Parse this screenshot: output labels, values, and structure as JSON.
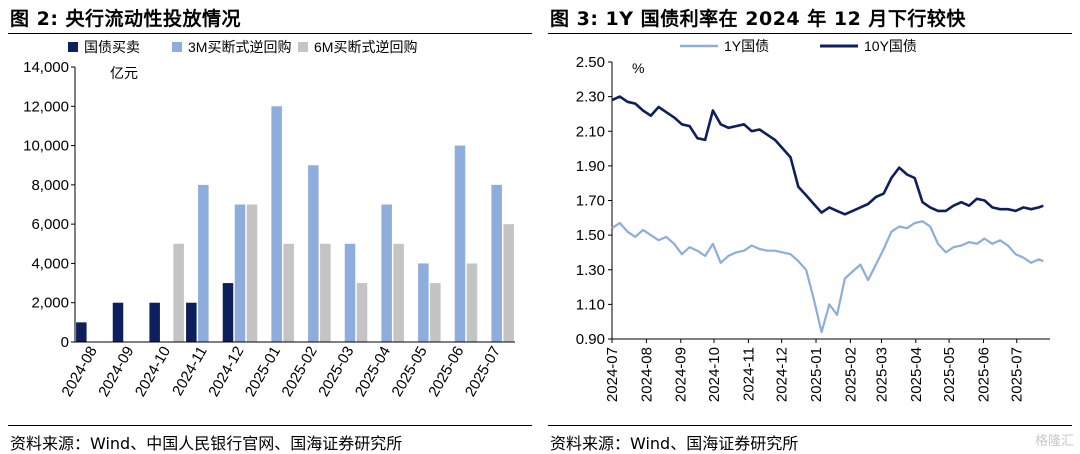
{
  "left": {
    "title": "图 2:  央行流动性投放情况",
    "source": "资料来源：Wind、中国人民银行官网、国海证券研究所",
    "chart_data": {
      "type": "bar",
      "categories": [
        "2024-08",
        "2024-09",
        "2024-10",
        "2024-11",
        "2024-12",
        "2025-01",
        "2025-02",
        "2025-03",
        "2025-04",
        "2025-05",
        "2025-06",
        "2025-07"
      ],
      "series": [
        {
          "name": "国债买卖",
          "color": "#0d1f5c",
          "values": [
            1000,
            2000,
            2000,
            2000,
            3000,
            0,
            0,
            0,
            0,
            0,
            0,
            0
          ]
        },
        {
          "name": "3M买断式逆回购",
          "color": "#8eacdc",
          "values": [
            0,
            0,
            0,
            8000,
            7000,
            12000,
            9000,
            5000,
            7000,
            4000,
            10000,
            8000
          ]
        },
        {
          "name": "6M买断式逆回购",
          "color": "#c4c4c4",
          "values": [
            0,
            0,
            5000,
            0,
            7000,
            5000,
            5000,
            3000,
            5000,
            3000,
            4000,
            6000
          ]
        }
      ],
      "yticks": [
        "0",
        "2,000",
        "4,000",
        "6,000",
        "8,000",
        "10,000",
        "12,000",
        "14,000"
      ],
      "ylim": [
        0,
        14000
      ],
      "unit": "亿元",
      "legend": "top"
    }
  },
  "right": {
    "title": "图 3:  1Y 国债利率在 2024 年 12 月下行较快",
    "source": "资料来源：Wind、国海证券研究所",
    "chart_data": {
      "type": "line",
      "x_labels": [
        "2024-07",
        "2024-08",
        "2024-09",
        "2024-10",
        "2024-11",
        "2024-12",
        "2025-01",
        "2025-02",
        "2025-03",
        "2025-04",
        "2025-05",
        "2025-06",
        "2025-07"
      ],
      "yticks": [
        "0.90",
        "1.10",
        "1.30",
        "1.50",
        "1.70",
        "1.90",
        "2.10",
        "2.30",
        "2.50"
      ],
      "ylim": [
        0.9,
        2.5
      ],
      "unit": "%",
      "legend": "top",
      "series": [
        {
          "name": "1Y国债",
          "color": "#8eacdc",
          "x": [
            "2024-07-01",
            "2024-07-08",
            "2024-07-15",
            "2024-07-22",
            "2024-07-29",
            "2024-08-05",
            "2024-08-12",
            "2024-08-19",
            "2024-08-26",
            "2024-09-02",
            "2024-09-09",
            "2024-09-16",
            "2024-09-23",
            "2024-09-30",
            "2024-10-07",
            "2024-10-14",
            "2024-10-21",
            "2024-10-28",
            "2024-11-04",
            "2024-11-11",
            "2024-11-18",
            "2024-11-25",
            "2024-12-02",
            "2024-12-09",
            "2024-12-16",
            "2024-12-23",
            "2024-12-30",
            "2025-01-06",
            "2025-01-13",
            "2025-01-20",
            "2025-01-27",
            "2025-02-03",
            "2025-02-10",
            "2025-02-17",
            "2025-02-24",
            "2025-03-03",
            "2025-03-10",
            "2025-03-17",
            "2025-03-24",
            "2025-03-31",
            "2025-04-07",
            "2025-04-14",
            "2025-04-21",
            "2025-04-28",
            "2025-05-05",
            "2025-05-12",
            "2025-05-19",
            "2025-05-26",
            "2025-06-02",
            "2025-06-09",
            "2025-06-16",
            "2025-06-23",
            "2025-06-30",
            "2025-07-07",
            "2025-07-14",
            "2025-07-21",
            "2025-07-25"
          ],
          "values": [
            1.54,
            1.57,
            1.52,
            1.49,
            1.53,
            1.5,
            1.47,
            1.49,
            1.45,
            1.39,
            1.43,
            1.41,
            1.38,
            1.45,
            1.34,
            1.38,
            1.4,
            1.41,
            1.44,
            1.42,
            1.41,
            1.41,
            1.4,
            1.39,
            1.35,
            1.3,
            1.13,
            0.94,
            1.1,
            1.04,
            1.25,
            1.29,
            1.33,
            1.24,
            1.33,
            1.42,
            1.52,
            1.55,
            1.54,
            1.57,
            1.58,
            1.55,
            1.45,
            1.4,
            1.43,
            1.44,
            1.46,
            1.45,
            1.48,
            1.45,
            1.47,
            1.44,
            1.39,
            1.37,
            1.34,
            1.36,
            1.35
          ]
        },
        {
          "name": "10Y国债",
          "color": "#0d1f5c",
          "x": [
            "2024-07-01",
            "2024-07-08",
            "2024-07-15",
            "2024-07-22",
            "2024-07-29",
            "2024-08-05",
            "2024-08-12",
            "2024-08-19",
            "2024-08-26",
            "2024-09-02",
            "2024-09-09",
            "2024-09-16",
            "2024-09-23",
            "2024-09-30",
            "2024-10-07",
            "2024-10-14",
            "2024-10-21",
            "2024-10-28",
            "2024-11-04",
            "2024-11-11",
            "2024-11-18",
            "2024-11-25",
            "2024-12-02",
            "2024-12-09",
            "2024-12-16",
            "2024-12-23",
            "2024-12-30",
            "2025-01-06",
            "2025-01-13",
            "2025-01-20",
            "2025-01-27",
            "2025-02-03",
            "2025-02-10",
            "2025-02-17",
            "2025-02-24",
            "2025-03-03",
            "2025-03-10",
            "2025-03-17",
            "2025-03-24",
            "2025-03-31",
            "2025-04-07",
            "2025-04-14",
            "2025-04-21",
            "2025-04-28",
            "2025-05-05",
            "2025-05-12",
            "2025-05-19",
            "2025-05-26",
            "2025-06-02",
            "2025-06-09",
            "2025-06-16",
            "2025-06-23",
            "2025-06-30",
            "2025-07-07",
            "2025-07-14",
            "2025-07-21",
            "2025-07-25"
          ],
          "values": [
            2.28,
            2.3,
            2.27,
            2.26,
            2.22,
            2.19,
            2.24,
            2.21,
            2.18,
            2.14,
            2.13,
            2.06,
            2.05,
            2.22,
            2.14,
            2.12,
            2.13,
            2.14,
            2.1,
            2.11,
            2.08,
            2.05,
            2.0,
            1.95,
            1.78,
            1.73,
            1.68,
            1.63,
            1.66,
            1.64,
            1.62,
            1.64,
            1.66,
            1.68,
            1.72,
            1.74,
            1.83,
            1.89,
            1.85,
            1.83,
            1.69,
            1.66,
            1.64,
            1.64,
            1.67,
            1.69,
            1.67,
            1.71,
            1.7,
            1.66,
            1.65,
            1.65,
            1.64,
            1.66,
            1.65,
            1.66,
            1.67
          ]
        }
      ]
    }
  },
  "watermark": "格隆汇"
}
